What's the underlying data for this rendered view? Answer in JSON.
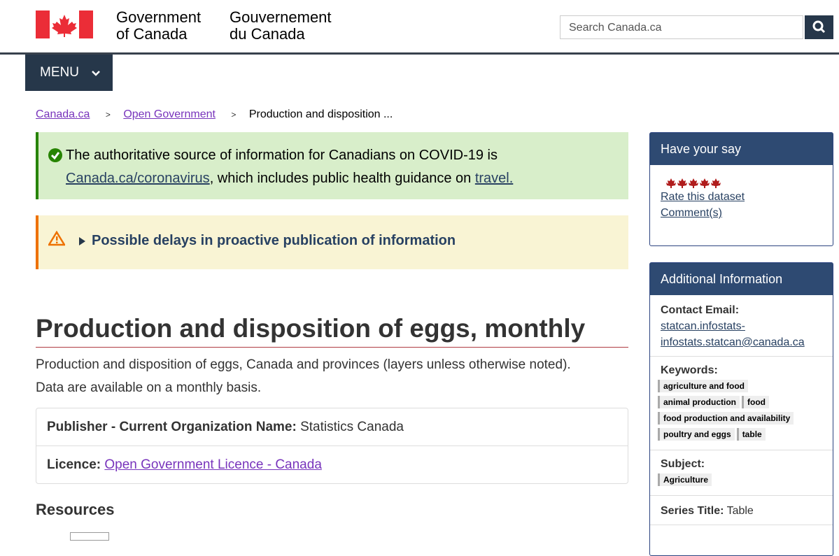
{
  "header": {
    "gov_en": [
      "Government",
      "of Canada"
    ],
    "gov_fr": [
      "Gouvernement",
      "du Canada"
    ],
    "search_placeholder": "Search Canada.ca"
  },
  "menu": "MENU",
  "breadcrumbs": [
    "Canada.ca",
    "Open Government",
    "Production and disposition ..."
  ],
  "covid_notice": {
    "text_1": "The authoritative source of information for Canadians on COVID-19 is",
    "link_1": "Canada.ca/coronavirus",
    "text_2": ", which includes public health guidance on",
    "link_2": "travel."
  },
  "warning": "Possible delays in proactive publication of information",
  "title": "Production and disposition of eggs, monthly",
  "description": "Production and disposition of eggs, Canada and provinces (layers unless otherwise noted). Data are available on a monthly basis.",
  "details": {
    "publisher_label": "Publisher - Current Organization Name:",
    "publisher_value": "Statistics Canada",
    "licence_label": "Licence:",
    "licence_value": "Open Government Licence - Canada"
  },
  "resources_heading": "Resources",
  "sidebar": {
    "have_your_say": {
      "title": "Have your say",
      "links": [
        "Rate this dataset",
        "Comment(s)"
      ]
    },
    "additional_info": {
      "title": "Additional Information",
      "contact_label": "Contact Email:",
      "contact_email": [
        "statcan.infostats-",
        "infostats.statcan@canada.ca"
      ],
      "keywords_label": "Keywords:",
      "keywords": [
        "agriculture and food",
        "animal production",
        "food",
        "food production and availability",
        "poultry and eggs",
        "table"
      ],
      "subject_label": "Subject:",
      "subjects": [
        "Agriculture"
      ],
      "series_label": "Series Title:",
      "series_value": "Table"
    }
  }
}
